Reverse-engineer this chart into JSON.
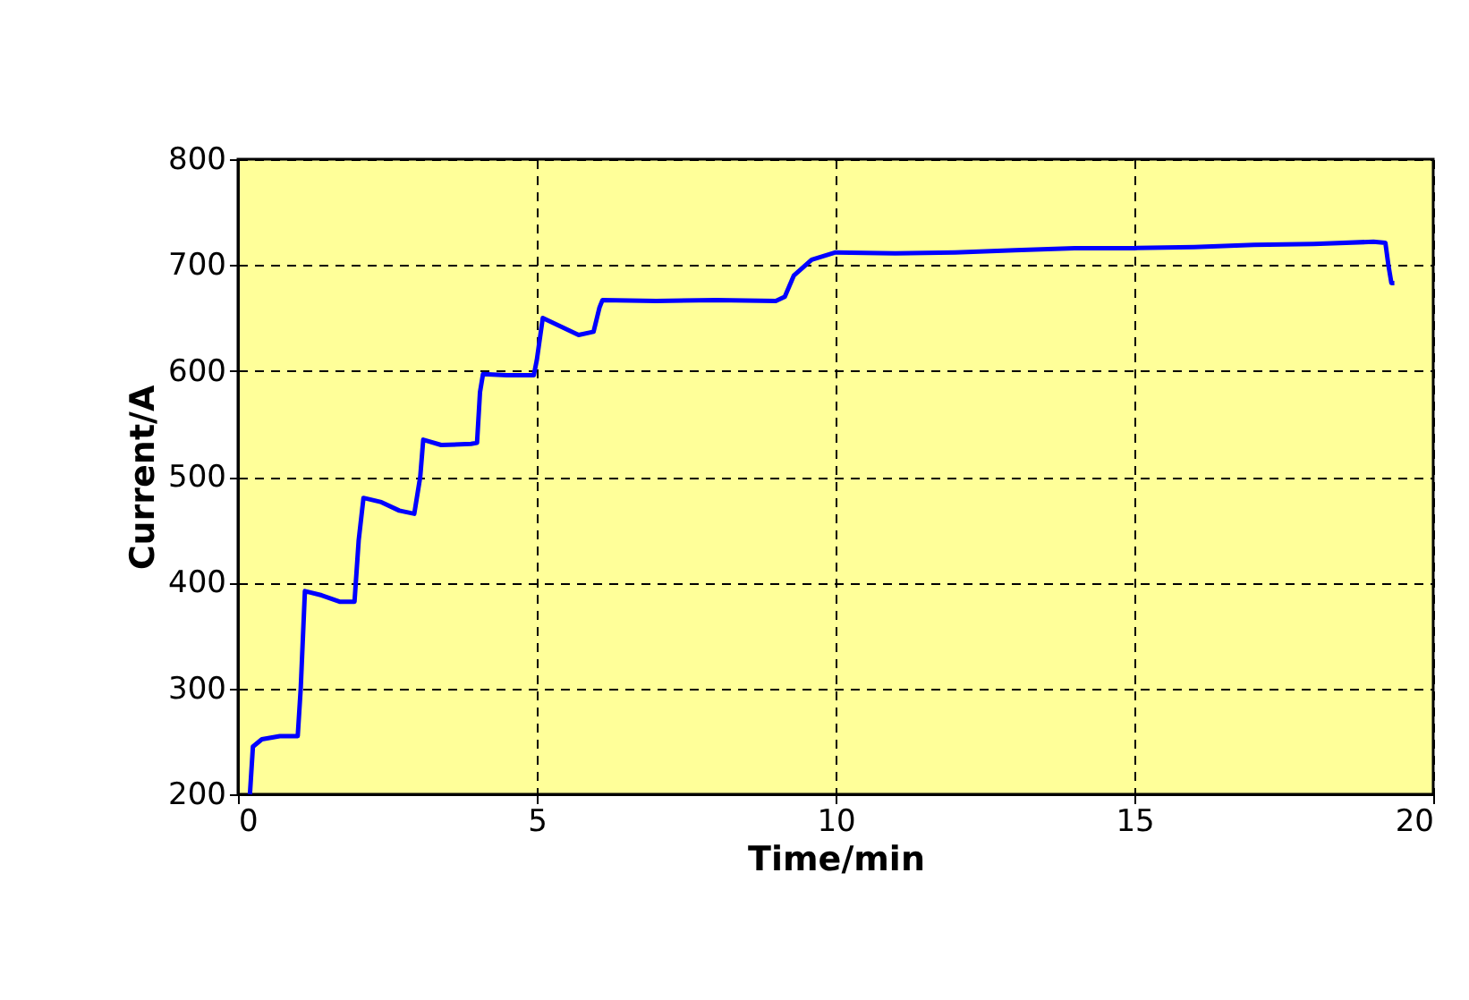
{
  "chart_data": {
    "type": "line",
    "xlabel": "Time/min",
    "ylabel": "Current/A",
    "xlim": [
      0,
      20
    ],
    "xticks": [
      0,
      5,
      10,
      15,
      20
    ],
    "ylim": [
      200,
      800
    ],
    "yticks": [
      200,
      300,
      400,
      500,
      600,
      700,
      800
    ],
    "grid": true,
    "marker": "none",
    "line_style": "solid",
    "series": [
      {
        "color": "#0000ff",
        "x": [
          0.2,
          0.25,
          0.4,
          0.7,
          1.0,
          1.05,
          1.12,
          1.4,
          1.7,
          1.95,
          2.02,
          2.1,
          2.4,
          2.7,
          2.95,
          3.05,
          3.1,
          3.4,
          3.9,
          4.0,
          4.05,
          4.1,
          4.5,
          4.95,
          5.0,
          5.1,
          5.4,
          5.7,
          5.95,
          6.05,
          6.1,
          7,
          8,
          9,
          9.15,
          9.3,
          9.6,
          10,
          11,
          12,
          13,
          14,
          15,
          16,
          17,
          18,
          19,
          19.2,
          19.25,
          19.3,
          19.35
        ],
        "values": [
          200,
          245,
          252,
          255,
          255,
          300,
          392,
          388,
          382,
          382,
          440,
          480,
          476,
          468,
          465,
          500,
          535,
          530,
          531,
          532,
          580,
          597,
          596,
          596,
          610,
          650,
          642,
          634,
          637,
          660,
          667,
          666,
          667,
          666,
          670,
          690,
          705,
          712,
          711,
          712,
          714,
          716,
          716,
          717,
          719,
          720,
          722,
          721,
          700,
          683,
          683
        ]
      }
    ]
  }
}
